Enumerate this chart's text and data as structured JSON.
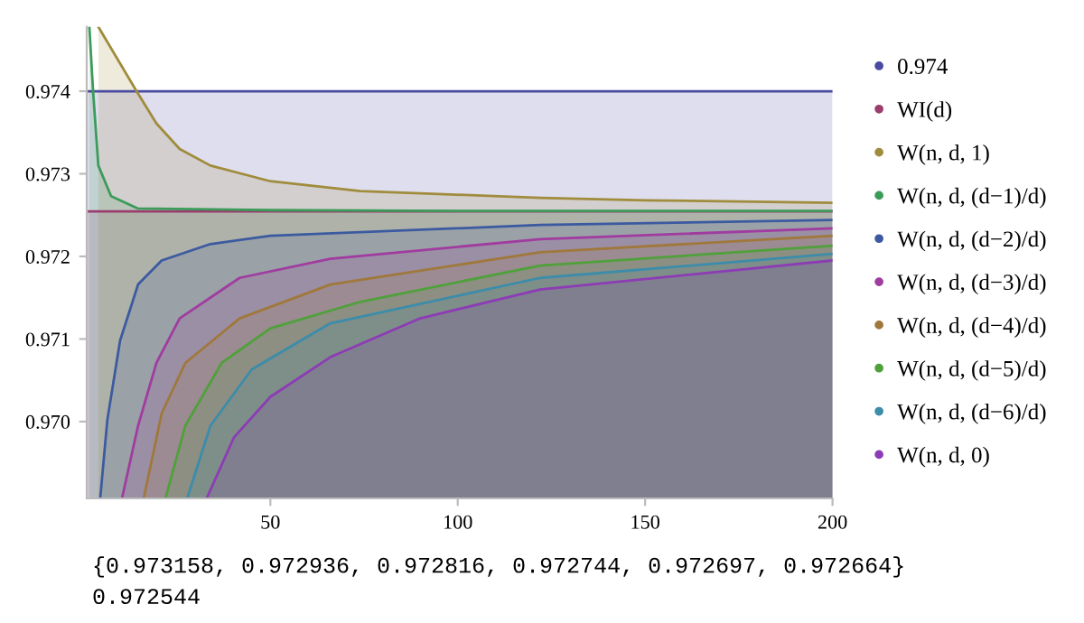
{
  "chart_data": {
    "type": "area",
    "xlim": [
      1,
      200
    ],
    "xticks": [
      50,
      100,
      150,
      200
    ],
    "ylim": [
      0.96907,
      0.97478
    ],
    "yticks": [
      {
        "value": 0.97,
        "label": "0.970"
      },
      {
        "value": 0.971,
        "label": "0.971"
      },
      {
        "value": 0.972,
        "label": "0.972"
      },
      {
        "value": 0.973,
        "label": "0.973"
      },
      {
        "value": 0.974,
        "label": "0.974"
      }
    ],
    "grid": false,
    "legend": "right",
    "series": [
      {
        "name": "0.974",
        "color": "#4a4aa0",
        "x": [
          1,
          200
        ],
        "values": [
          0.974,
          0.974
        ]
      },
      {
        "name": "WI(d)",
        "color": "#9b3d6e",
        "x": [
          1,
          200
        ],
        "values": [
          0.972544,
          0.972544
        ]
      },
      {
        "name": "W(n, d, 1)",
        "color": "#a08c3c",
        "x": [
          4.1,
          14.3,
          19.6,
          25.8,
          34,
          50,
          74,
          98,
          122,
          150,
          200
        ],
        "values": [
          0.97478,
          0.974,
          0.97361,
          0.9733,
          0.9731,
          0.97291,
          0.97279,
          0.97275,
          0.97271,
          0.97268,
          0.97265
        ]
      },
      {
        "name": "W(n, d, (d−1)/d)",
        "color": "#3c9b5a",
        "x": [
          1.7,
          2.7,
          4.1,
          7.5,
          14.7,
          50,
          100,
          200
        ],
        "values": [
          0.97478,
          0.974,
          0.9731,
          0.97273,
          0.97258,
          0.97256,
          0.97255,
          0.97255
        ]
      },
      {
        "name": "W(n, d, (d−2)/d)",
        "color": "#3c5aa0",
        "x": [
          4.6,
          6.5,
          9.9,
          14.7,
          21,
          34,
          50,
          122,
          200
        ],
        "values": [
          0.96907,
          0.97002,
          0.97098,
          0.97166,
          0.97195,
          0.97215,
          0.97225,
          0.97238,
          0.97244
        ]
      },
      {
        "name": "W(n, d, (d−3)/d)",
        "color": "#a03ca0",
        "x": [
          10.4,
          14.7,
          19.6,
          25.8,
          41.8,
          66,
          122,
          200
        ],
        "values": [
          0.96907,
          0.96995,
          0.97071,
          0.97125,
          0.97174,
          0.97197,
          0.97221,
          0.97234
        ]
      },
      {
        "name": "W(n, d, (d−4)/d)",
        "color": "#a0783c",
        "x": [
          16.2,
          21,
          27.3,
          41.8,
          66,
          122,
          200
        ],
        "values": [
          0.96907,
          0.9701,
          0.97071,
          0.97125,
          0.97166,
          0.97205,
          0.97225
        ]
      },
      {
        "name": "W(n, d, (d−5)/d)",
        "color": "#50a03c",
        "x": [
          22,
          27.3,
          37,
          50,
          74,
          122,
          200
        ],
        "values": [
          0.96907,
          0.96995,
          0.97071,
          0.97113,
          0.97145,
          0.97189,
          0.97213
        ]
      },
      {
        "name": "W(n, d, (d−6)/d)",
        "color": "#3c8caa",
        "x": [
          27.8,
          34,
          45,
          66,
          122,
          200
        ],
        "values": [
          0.96907,
          0.96995,
          0.97063,
          0.97119,
          0.97174,
          0.97203
        ]
      },
      {
        "name": "W(n, d, 0)",
        "color": "#8c3cb4",
        "x": [
          33,
          40.3,
          50,
          66,
          90,
          122,
          200
        ],
        "values": [
          0.96907,
          0.96981,
          0.9703,
          0.97078,
          0.97125,
          0.9716,
          0.97195
        ]
      }
    ],
    "annotations": [
      "{0.973158, 0.972936, 0.972816, 0.972744, 0.972697, 0.972664}",
      "0.972544"
    ]
  }
}
